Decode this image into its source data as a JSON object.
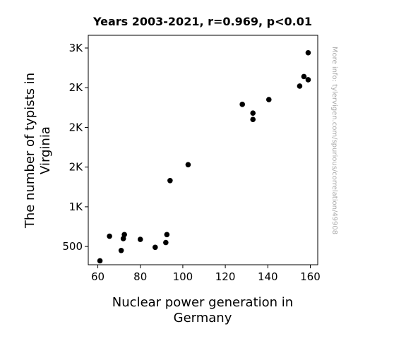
{
  "chart_data": {
    "type": "scatter",
    "title": "Years 2003-2021, r=0.969, p<0.01",
    "xlabel": [
      "Nuclear power generation in",
      "Germany"
    ],
    "ylabel": [
      "The number of typists in",
      "Virginia"
    ],
    "side_text": "More info: tylervigen.com/spurious/correlation/49908",
    "xlim": [
      55.5,
      163.5
    ],
    "ylim": [
      270,
      3160
    ],
    "x_ticks": [
      {
        "value": 60,
        "label": "60"
      },
      {
        "value": 80,
        "label": "80"
      },
      {
        "value": 100,
        "label": "100"
      },
      {
        "value": 120,
        "label": "120"
      },
      {
        "value": 140,
        "label": "140"
      },
      {
        "value": 160,
        "label": "160"
      }
    ],
    "y_ticks": [
      {
        "value": 500,
        "label": "500"
      },
      {
        "value": 1000,
        "label": "1K"
      },
      {
        "value": 1500,
        "label": "2K"
      },
      {
        "value": 2000,
        "label": "2K"
      },
      {
        "value": 2500,
        "label": "2K"
      },
      {
        "value": 3000,
        "label": "3K"
      }
    ],
    "grid": false,
    "marker_color": "#000000",
    "points": [
      {
        "x": 61.0,
        "y": 320
      },
      {
        "x": 65.5,
        "y": 630
      },
      {
        "x": 71.0,
        "y": 450
      },
      {
        "x": 72.0,
        "y": 600
      },
      {
        "x": 72.5,
        "y": 650
      },
      {
        "x": 80.0,
        "y": 590
      },
      {
        "x": 87.0,
        "y": 490
      },
      {
        "x": 92.0,
        "y": 550
      },
      {
        "x": 92.5,
        "y": 650
      },
      {
        "x": 94.0,
        "y": 1330
      },
      {
        "x": 102.5,
        "y": 1530
      },
      {
        "x": 128.0,
        "y": 2290
      },
      {
        "x": 133.0,
        "y": 2180
      },
      {
        "x": 133.0,
        "y": 2100
      },
      {
        "x": 140.5,
        "y": 2350
      },
      {
        "x": 155.0,
        "y": 2520
      },
      {
        "x": 157.0,
        "y": 2640
      },
      {
        "x": 159.0,
        "y": 2600
      },
      {
        "x": 159.0,
        "y": 2940
      }
    ]
  }
}
